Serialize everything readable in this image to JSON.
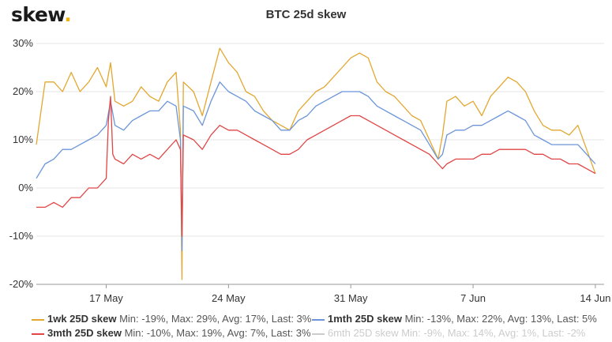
{
  "logo": {
    "text": "skew",
    "dot": "."
  },
  "chart_data": {
    "type": "line",
    "title": "BTC 25d skew",
    "ylim": [
      -20,
      30
    ],
    "yticks": [
      "30%",
      "20%",
      "10%",
      "0%",
      "-10%",
      "-20%"
    ],
    "ytick_values": [
      30,
      20,
      10,
      0,
      -10,
      -20
    ],
    "xlim": [
      "2020-05-13",
      "2020-06-14"
    ],
    "xticks": [
      {
        "label": "17 May",
        "date": "2020-05-17"
      },
      {
        "label": "24 May",
        "date": "2020-05-24"
      },
      {
        "label": "31 May",
        "date": "2020-05-31"
      },
      {
        "label": "7 Jun",
        "date": "2020-06-07"
      },
      {
        "label": "14 Jun",
        "date": "2020-06-14"
      }
    ],
    "grid": "horizontal",
    "legend_position": "bottom",
    "series": [
      {
        "name": "1wk 25D skew",
        "stats": "Min: -19%, Max: 29%, Avg: 17%, Last: 3%",
        "color": "#e3a72f",
        "visible": true,
        "points": [
          [
            "2020-05-13 00:00",
            9
          ],
          [
            "2020-05-13 12:00",
            22
          ],
          [
            "2020-05-14 00:00",
            22
          ],
          [
            "2020-05-14 12:00",
            20
          ],
          [
            "2020-05-15 00:00",
            24
          ],
          [
            "2020-05-15 12:00",
            20
          ],
          [
            "2020-05-16 00:00",
            22
          ],
          [
            "2020-05-16 12:00",
            25
          ],
          [
            "2020-05-17 00:00",
            21
          ],
          [
            "2020-05-17 06:00",
            26
          ],
          [
            "2020-05-17 12:00",
            18
          ],
          [
            "2020-05-18 00:00",
            17
          ],
          [
            "2020-05-18 12:00",
            18
          ],
          [
            "2020-05-19 00:00",
            21
          ],
          [
            "2020-05-19 12:00",
            19
          ],
          [
            "2020-05-20 00:00",
            18
          ],
          [
            "2020-05-20 12:00",
            22
          ],
          [
            "2020-05-21 00:00",
            24
          ],
          [
            "2020-05-21 06:00",
            12
          ],
          [
            "2020-05-21 08:00",
            -19
          ],
          [
            "2020-05-21 10:00",
            22
          ],
          [
            "2020-05-22 00:00",
            20
          ],
          [
            "2020-05-22 12:00",
            15
          ],
          [
            "2020-05-23 00:00",
            22
          ],
          [
            "2020-05-23 12:00",
            29
          ],
          [
            "2020-05-24 00:00",
            26
          ],
          [
            "2020-05-24 12:00",
            24
          ],
          [
            "2020-05-25 00:00",
            20
          ],
          [
            "2020-05-25 12:00",
            19
          ],
          [
            "2020-05-26 00:00",
            16
          ],
          [
            "2020-05-26 12:00",
            14
          ],
          [
            "2020-05-27 00:00",
            13
          ],
          [
            "2020-05-27 12:00",
            12
          ],
          [
            "2020-05-28 00:00",
            16
          ],
          [
            "2020-05-28 12:00",
            18
          ],
          [
            "2020-05-29 00:00",
            20
          ],
          [
            "2020-05-29 12:00",
            21
          ],
          [
            "2020-05-30 00:00",
            23
          ],
          [
            "2020-05-30 12:00",
            25
          ],
          [
            "2020-05-31 00:00",
            27
          ],
          [
            "2020-05-31 12:00",
            28
          ],
          [
            "2020-06-01 00:00",
            27
          ],
          [
            "2020-06-01 12:00",
            22
          ],
          [
            "2020-06-02 00:00",
            20
          ],
          [
            "2020-06-02 12:00",
            19
          ],
          [
            "2020-06-03 00:00",
            17
          ],
          [
            "2020-06-03 12:00",
            15
          ],
          [
            "2020-06-04 00:00",
            14
          ],
          [
            "2020-06-04 12:00",
            10
          ],
          [
            "2020-06-05 00:00",
            6
          ],
          [
            "2020-06-05 06:00",
            11
          ],
          [
            "2020-06-05 12:00",
            18
          ],
          [
            "2020-06-06 00:00",
            19
          ],
          [
            "2020-06-06 12:00",
            17
          ],
          [
            "2020-06-07 00:00",
            18
          ],
          [
            "2020-06-07 12:00",
            15
          ],
          [
            "2020-06-08 00:00",
            19
          ],
          [
            "2020-06-08 12:00",
            21
          ],
          [
            "2020-06-09 00:00",
            23
          ],
          [
            "2020-06-09 12:00",
            22
          ],
          [
            "2020-06-10 00:00",
            20
          ],
          [
            "2020-06-10 12:00",
            16
          ],
          [
            "2020-06-11 00:00",
            13
          ],
          [
            "2020-06-11 12:00",
            12
          ],
          [
            "2020-06-12 00:00",
            12
          ],
          [
            "2020-06-12 12:00",
            11
          ],
          [
            "2020-06-13 00:00",
            13
          ],
          [
            "2020-06-13 12:00",
            8
          ],
          [
            "2020-06-14 00:00",
            3
          ]
        ]
      },
      {
        "name": "1mth 25D skew",
        "stats": "Min: -13%, Max: 22%, Avg: 13%, Last: 5%",
        "color": "#6b95d9",
        "visible": true,
        "points": [
          [
            "2020-05-13 00:00",
            2
          ],
          [
            "2020-05-13 12:00",
            5
          ],
          [
            "2020-05-14 00:00",
            6
          ],
          [
            "2020-05-14 12:00",
            8
          ],
          [
            "2020-05-15 00:00",
            8
          ],
          [
            "2020-05-15 12:00",
            9
          ],
          [
            "2020-05-16 00:00",
            10
          ],
          [
            "2020-05-16 12:00",
            11
          ],
          [
            "2020-05-17 00:00",
            13
          ],
          [
            "2020-05-17 06:00",
            18
          ],
          [
            "2020-05-17 12:00",
            13
          ],
          [
            "2020-05-18 00:00",
            12
          ],
          [
            "2020-05-18 12:00",
            14
          ],
          [
            "2020-05-19 00:00",
            15
          ],
          [
            "2020-05-19 12:00",
            16
          ],
          [
            "2020-05-20 00:00",
            16
          ],
          [
            "2020-05-20 12:00",
            18
          ],
          [
            "2020-05-21 00:00",
            17
          ],
          [
            "2020-05-21 06:00",
            10
          ],
          [
            "2020-05-21 08:00",
            -13
          ],
          [
            "2020-05-21 10:00",
            17
          ],
          [
            "2020-05-22 00:00",
            16
          ],
          [
            "2020-05-22 12:00",
            13
          ],
          [
            "2020-05-23 00:00",
            18
          ],
          [
            "2020-05-23 12:00",
            22
          ],
          [
            "2020-05-24 00:00",
            20
          ],
          [
            "2020-05-24 12:00",
            19
          ],
          [
            "2020-05-25 00:00",
            18
          ],
          [
            "2020-05-25 12:00",
            16
          ],
          [
            "2020-05-26 00:00",
            15
          ],
          [
            "2020-05-26 12:00",
            14
          ],
          [
            "2020-05-27 00:00",
            12
          ],
          [
            "2020-05-27 12:00",
            12
          ],
          [
            "2020-05-28 00:00",
            14
          ],
          [
            "2020-05-28 12:00",
            15
          ],
          [
            "2020-05-29 00:00",
            17
          ],
          [
            "2020-05-29 12:00",
            18
          ],
          [
            "2020-05-30 00:00",
            19
          ],
          [
            "2020-05-30 12:00",
            20
          ],
          [
            "2020-05-31 00:00",
            20
          ],
          [
            "2020-05-31 12:00",
            20
          ],
          [
            "2020-06-01 00:00",
            19
          ],
          [
            "2020-06-01 12:00",
            17
          ],
          [
            "2020-06-02 00:00",
            16
          ],
          [
            "2020-06-02 12:00",
            15
          ],
          [
            "2020-06-03 00:00",
            14
          ],
          [
            "2020-06-03 12:00",
            13
          ],
          [
            "2020-06-04 00:00",
            12
          ],
          [
            "2020-06-04 12:00",
            9
          ],
          [
            "2020-06-05 00:00",
            6
          ],
          [
            "2020-06-05 06:00",
            7
          ],
          [
            "2020-06-05 12:00",
            11
          ],
          [
            "2020-06-06 00:00",
            12
          ],
          [
            "2020-06-06 12:00",
            12
          ],
          [
            "2020-06-07 00:00",
            13
          ],
          [
            "2020-06-07 12:00",
            13
          ],
          [
            "2020-06-08 00:00",
            14
          ],
          [
            "2020-06-08 12:00",
            15
          ],
          [
            "2020-06-09 00:00",
            16
          ],
          [
            "2020-06-09 12:00",
            15
          ],
          [
            "2020-06-10 00:00",
            14
          ],
          [
            "2020-06-10 12:00",
            11
          ],
          [
            "2020-06-11 00:00",
            10
          ],
          [
            "2020-06-11 12:00",
            9
          ],
          [
            "2020-06-12 00:00",
            9
          ],
          [
            "2020-06-12 12:00",
            9
          ],
          [
            "2020-06-13 00:00",
            9
          ],
          [
            "2020-06-13 12:00",
            7
          ],
          [
            "2020-06-14 00:00",
            5
          ]
        ]
      },
      {
        "name": "3mth 25D skew",
        "stats": "Min: -10%, Max: 19%, Avg: 7%, Last: 3%",
        "color": "#e04646",
        "visible": true,
        "points": [
          [
            "2020-05-13 00:00",
            -4
          ],
          [
            "2020-05-13 12:00",
            -4
          ],
          [
            "2020-05-14 00:00",
            -3
          ],
          [
            "2020-05-14 12:00",
            -4
          ],
          [
            "2020-05-15 00:00",
            -2
          ],
          [
            "2020-05-15 12:00",
            -2
          ],
          [
            "2020-05-16 00:00",
            0
          ],
          [
            "2020-05-16 12:00",
            0
          ],
          [
            "2020-05-17 00:00",
            2
          ],
          [
            "2020-05-17 03:00",
            14
          ],
          [
            "2020-05-17 06:00",
            19
          ],
          [
            "2020-05-17 09:00",
            7
          ],
          [
            "2020-05-17 12:00",
            6
          ],
          [
            "2020-05-18 00:00",
            5
          ],
          [
            "2020-05-18 12:00",
            7
          ],
          [
            "2020-05-19 00:00",
            6
          ],
          [
            "2020-05-19 12:00",
            7
          ],
          [
            "2020-05-20 00:00",
            6
          ],
          [
            "2020-05-20 12:00",
            8
          ],
          [
            "2020-05-21 00:00",
            10
          ],
          [
            "2020-05-21 06:00",
            8
          ],
          [
            "2020-05-21 08:00",
            -10
          ],
          [
            "2020-05-21 10:00",
            11
          ],
          [
            "2020-05-22 00:00",
            10
          ],
          [
            "2020-05-22 12:00",
            8
          ],
          [
            "2020-05-23 00:00",
            11
          ],
          [
            "2020-05-23 12:00",
            13
          ],
          [
            "2020-05-24 00:00",
            12
          ],
          [
            "2020-05-24 12:00",
            12
          ],
          [
            "2020-05-25 00:00",
            11
          ],
          [
            "2020-05-25 12:00",
            10
          ],
          [
            "2020-05-26 00:00",
            9
          ],
          [
            "2020-05-26 12:00",
            8
          ],
          [
            "2020-05-27 00:00",
            7
          ],
          [
            "2020-05-27 12:00",
            7
          ],
          [
            "2020-05-28 00:00",
            8
          ],
          [
            "2020-05-28 12:00",
            10
          ],
          [
            "2020-05-29 00:00",
            11
          ],
          [
            "2020-05-29 12:00",
            12
          ],
          [
            "2020-05-30 00:00",
            13
          ],
          [
            "2020-05-30 12:00",
            14
          ],
          [
            "2020-05-31 00:00",
            15
          ],
          [
            "2020-05-31 12:00",
            15
          ],
          [
            "2020-06-01 00:00",
            14
          ],
          [
            "2020-06-01 12:00",
            13
          ],
          [
            "2020-06-02 00:00",
            12
          ],
          [
            "2020-06-02 12:00",
            11
          ],
          [
            "2020-06-03 00:00",
            10
          ],
          [
            "2020-06-03 12:00",
            9
          ],
          [
            "2020-06-04 00:00",
            8
          ],
          [
            "2020-06-04 12:00",
            7
          ],
          [
            "2020-06-05 00:00",
            5
          ],
          [
            "2020-06-05 06:00",
            4
          ],
          [
            "2020-06-05 12:00",
            5
          ],
          [
            "2020-06-06 00:00",
            6
          ],
          [
            "2020-06-06 12:00",
            6
          ],
          [
            "2020-06-07 00:00",
            6
          ],
          [
            "2020-06-07 12:00",
            7
          ],
          [
            "2020-06-08 00:00",
            7
          ],
          [
            "2020-06-08 12:00",
            8
          ],
          [
            "2020-06-09 00:00",
            8
          ],
          [
            "2020-06-09 12:00",
            8
          ],
          [
            "2020-06-10 00:00",
            8
          ],
          [
            "2020-06-10 12:00",
            7
          ],
          [
            "2020-06-11 00:00",
            7
          ],
          [
            "2020-06-11 12:00",
            6
          ],
          [
            "2020-06-12 00:00",
            6
          ],
          [
            "2020-06-12 12:00",
            5
          ],
          [
            "2020-06-13 00:00",
            5
          ],
          [
            "2020-06-13 12:00",
            4
          ],
          [
            "2020-06-14 00:00",
            3
          ]
        ]
      },
      {
        "name": "6mth 25D skew",
        "stats": "Min: -9%, Max: 14%, Avg: 1%, Last: -2%",
        "color": "#cccccc",
        "visible": false,
        "points": []
      }
    ]
  }
}
